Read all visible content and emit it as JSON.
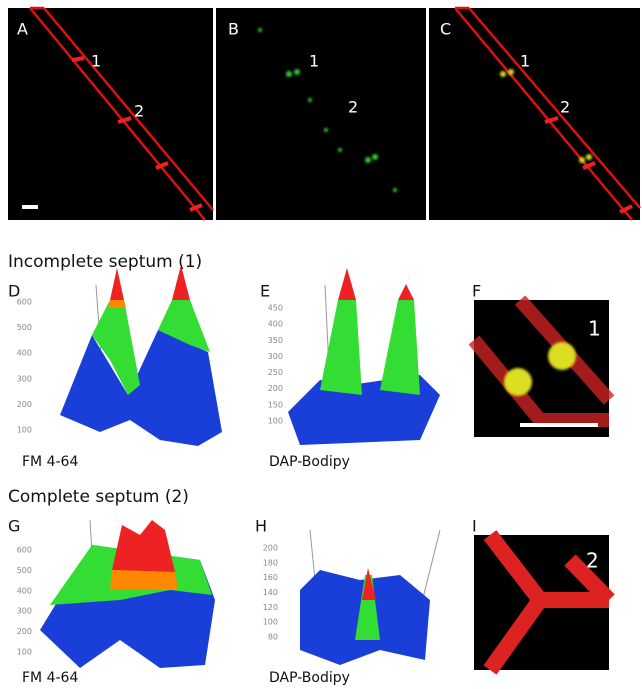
{
  "top_panels": [
    {
      "letter": "A",
      "markers": [
        "1",
        "2"
      ]
    },
    {
      "letter": "B",
      "markers": [
        "1",
        "2"
      ]
    },
    {
      "letter": "C",
      "markers": [
        "1",
        "2"
      ]
    }
  ],
  "sections": [
    {
      "title": "Incomplete septum (1)",
      "plots": [
        {
          "letter": "D",
          "caption": "FM 4-64",
          "ticks": [
            600,
            500,
            400,
            300,
            200,
            100
          ]
        },
        {
          "letter": "E",
          "caption": "DAP-Bodipy",
          "ticks": [
            450,
            400,
            350,
            300,
            250,
            200,
            150,
            100
          ]
        }
      ],
      "zoom": {
        "letter": "F",
        "marker": "1"
      }
    },
    {
      "title": "Complete septum (2)",
      "plots": [
        {
          "letter": "G",
          "caption": "FM 4-64",
          "ticks": [
            600,
            500,
            400,
            300,
            200,
            100
          ]
        },
        {
          "letter": "H",
          "caption": "DAP-Bodipy",
          "ticks": [
            200,
            180,
            160,
            140,
            120,
            100,
            80
          ]
        }
      ],
      "zoom": {
        "letter": "I",
        "marker": "2"
      }
    }
  ]
}
